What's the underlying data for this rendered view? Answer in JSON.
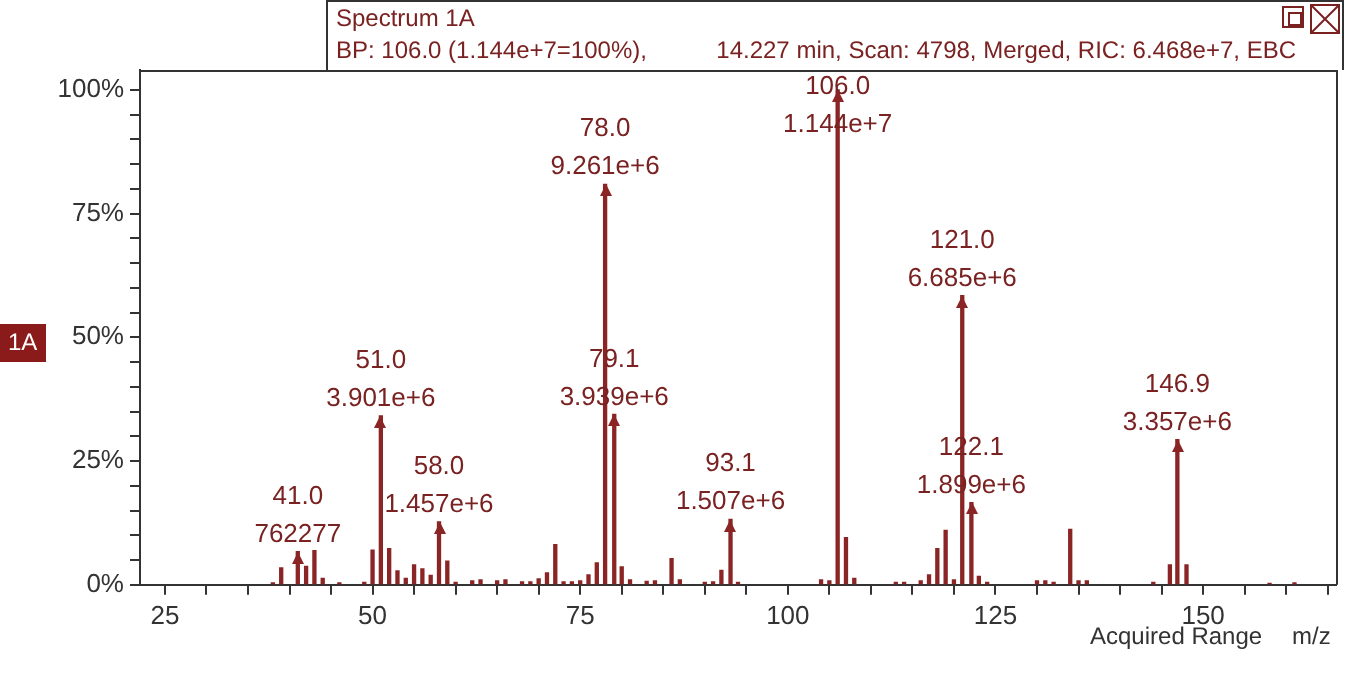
{
  "chart_data": {
    "type": "bar",
    "title": "Spectrum 1A",
    "subtitle": "BP: 106.0 (1.144e+7=100%),",
    "xlabel": "m/z",
    "annotations": [
      "14.227 min, Scan: 4798, Merged, RIC: 6.468e+7, EBC",
      "1A",
      "Acquired Range",
      {
        "text": "41.0\n762277",
        "x": 41,
        "y": 6.7
      },
      {
        "text": "51.0\n3.901e+6",
        "x": 51,
        "y": 34.1
      },
      {
        "text": "58.0\n1.457e+6",
        "x": 58,
        "y": 12.7
      },
      {
        "text": "78.0\n9.261e+6",
        "x": 78,
        "y": 80.9
      },
      {
        "text": "79.1\n3.939e+6",
        "x": 79.1,
        "y": 34.4
      },
      {
        "text": "93.1\n1.507e+6",
        "x": 93.1,
        "y": 13.2
      },
      {
        "text": "106.0\n1.144e+7",
        "x": 106,
        "y": 100
      },
      {
        "text": "121.0\n6.685e+6",
        "x": 121,
        "y": 58.4
      },
      {
        "text": "122.1\n1.899e+6",
        "x": 122.1,
        "y": 16.6
      },
      {
        "text": "146.9\n3.357e+6",
        "x": 146.9,
        "y": 29.3
      }
    ],
    "x": [
      38,
      39,
      41,
      42,
      43,
      44,
      46,
      49,
      50,
      51,
      52,
      53,
      54,
      55,
      56,
      57,
      58,
      59,
      60,
      62,
      63,
      65,
      66,
      68,
      69,
      70,
      71,
      72,
      73,
      74,
      75,
      76,
      77,
      78,
      79.1,
      80,
      81,
      83,
      84,
      86,
      87,
      90,
      91,
      92,
      93.1,
      94,
      104,
      105,
      106,
      107,
      108,
      113,
      114,
      116,
      117,
      118,
      119,
      120,
      121,
      122.1,
      123,
      124,
      130,
      131,
      132,
      134,
      135,
      136,
      144,
      146,
      146.9,
      148,
      158,
      161
    ],
    "values": [
      0.4,
      3.4,
      6.7,
      3.7,
      6.9,
      1.3,
      0.4,
      0.5,
      7.0,
      34.1,
      7.3,
      2.8,
      1.3,
      4.0,
      3.2,
      1.9,
      12.7,
      4.8,
      0.5,
      0.8,
      1.0,
      0.8,
      1.0,
      0.6,
      0.6,
      1.2,
      2.4,
      8.1,
      0.6,
      0.6,
      0.8,
      2.0,
      4.4,
      80.9,
      34.4,
      3.6,
      1.0,
      0.7,
      0.8,
      5.3,
      1.0,
      0.5,
      0.6,
      2.9,
      13.2,
      0.5,
      1.0,
      0.8,
      100,
      9.5,
      1.3,
      0.5,
      0.5,
      0.8,
      2.0,
      7.3,
      11.0,
      1.0,
      58.4,
      16.6,
      1.7,
      0.5,
      0.8,
      0.8,
      0.5,
      11.2,
      0.8,
      0.8,
      0.5,
      4.0,
      29.3,
      4.0,
      0.3,
      0.4
    ],
    "color": "#8b2525",
    "xlim": [
      22,
      166
    ],
    "xticks": [
      25,
      {
        "value": 30,
        "label": null
      },
      {
        "value": 35,
        "label": null
      },
      {
        "value": 40,
        "label": null
      },
      {
        "value": 45,
        "label": null
      },
      50,
      {
        "value": 55,
        "label": null
      },
      {
        "value": 60,
        "label": null
      },
      {
        "value": 65,
        "label": null
      },
      {
        "value": 70,
        "label": null
      },
      75,
      {
        "value": 80,
        "label": null
      },
      {
        "value": 85,
        "label": null
      },
      {
        "value": 90,
        "label": null
      },
      {
        "value": 95,
        "label": null
      },
      100,
      {
        "value": 105,
        "label": null
      },
      {
        "value": 110,
        "label": null
      },
      {
        "value": 115,
        "label": null
      },
      {
        "value": 120,
        "label": null
      },
      125,
      {
        "value": 130,
        "label": null
      },
      {
        "value": 135,
        "label": null
      },
      {
        "value": 140,
        "label": null
      },
      {
        "value": 145,
        "label": null
      },
      150,
      {
        "value": 155,
        "label": null
      },
      {
        "value": 160,
        "label": null
      },
      {
        "value": 165,
        "label": null
      }
    ],
    "ylim": [
      0,
      104
    ],
    "yticks": [
      {
        "value": 0,
        "label": "0%"
      },
      {
        "value": 5,
        "label": null
      },
      {
        "value": 10,
        "label": null
      },
      {
        "value": 15,
        "label": null
      },
      {
        "value": 20,
        "label": null
      },
      {
        "value": 25,
        "label": "25%"
      },
      {
        "value": 30,
        "label": null
      },
      {
        "value": 35,
        "label": null
      },
      {
        "value": 40,
        "label": null
      },
      {
        "value": 45,
        "label": null
      },
      {
        "value": 50,
        "label": "50%"
      },
      {
        "value": 55,
        "label": null
      },
      {
        "value": 60,
        "label": null
      },
      {
        "value": 65,
        "label": null
      },
      {
        "value": 70,
        "label": null
      },
      {
        "value": 75,
        "label": "75%"
      },
      {
        "value": 80,
        "label": null
      },
      {
        "value": 85,
        "label": null
      },
      {
        "value": 90,
        "label": null
      },
      {
        "value": 95,
        "label": null
      },
      {
        "value": 100,
        "label": "100%"
      }
    ]
  }
}
